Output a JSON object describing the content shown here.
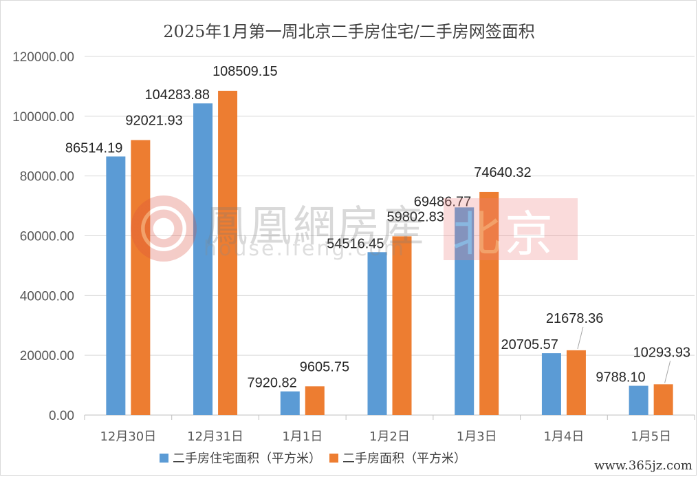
{
  "chart_data": {
    "type": "bar",
    "title": "2025年1月第一周北京二手房住宅/二手房网签面积",
    "categories": [
      "12月30日",
      "12月31日",
      "1月1日",
      "1月2日",
      "1月3日",
      "1月4日",
      "1月5日"
    ],
    "series": [
      {
        "name": "二手房住宅面积（平方米）",
        "color": "#5b9bd5",
        "values": [
          86514.19,
          104283.88,
          7920.82,
          54516.45,
          69486.77,
          20705.57,
          9788.1
        ],
        "labels": [
          "86514.19",
          "104283.88",
          "7920.82",
          "54516.45",
          "69486.77",
          "20705.57",
          "9788.10"
        ]
      },
      {
        "name": "二手房面积（平方米）",
        "color": "#ed7d31",
        "values": [
          92021.93,
          108509.15,
          9605.75,
          59802.83,
          74640.32,
          21678.36,
          10293.93
        ],
        "labels": [
          "92021.93",
          "108509.15",
          "9605.75",
          "59802.83",
          "74640.32",
          "21678.36",
          "10293.93"
        ]
      }
    ],
    "ylim": [
      0,
      120000
    ],
    "yticks": [
      "0.00",
      "20000.00",
      "40000.00",
      "60000.00",
      "80000.00",
      "100000.00",
      "120000.00"
    ],
    "xlabel": "",
    "ylabel": "",
    "grid": true,
    "legend_position": "bottom"
  },
  "watermark": {
    "brand": "鳳凰網房產",
    "url": "house.ifeng.com",
    "city": "北京",
    "logo": "ifeng-phoenix-logo"
  },
  "source_mark": "www.365jz.com"
}
